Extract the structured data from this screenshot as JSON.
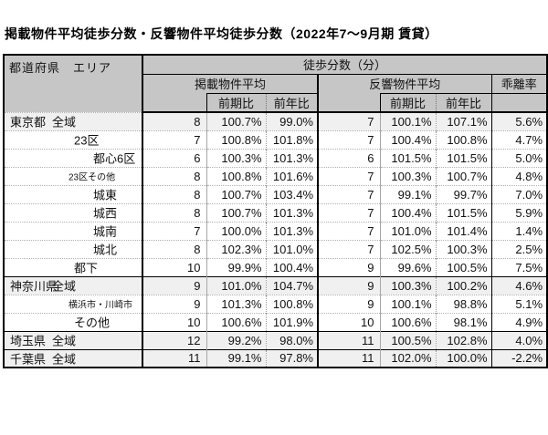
{
  "title": "掲載物件平均徒歩分数・反響物件平均徒歩分数（2022年7～9月期 賃貸）",
  "table": {
    "corner_header": "都道府県　エリア",
    "walk_header": "徒歩分数（分）",
    "headers": {
      "listed": "掲載物件平均",
      "response": "反響物件平均",
      "deviation": "乖離率",
      "prev_period": "前期比",
      "prev_year": "前年比"
    },
    "rows": [
      {
        "pref": "東京都",
        "area": "全域",
        "indent": 1,
        "tint": true,
        "group_start": false,
        "small": false,
        "listed": "8",
        "listed_prev_period": "100.7%",
        "listed_prev_year": "99.0%",
        "response": "7",
        "response_prev_period": "100.1%",
        "response_prev_year": "107.1%",
        "deviation": "5.6%"
      },
      {
        "pref": "",
        "area": "23区",
        "indent": 2,
        "tint": false,
        "group_start": false,
        "small": false,
        "listed": "7",
        "listed_prev_period": "100.8%",
        "listed_prev_year": "101.8%",
        "response": "7",
        "response_prev_period": "100.4%",
        "response_prev_year": "100.8%",
        "deviation": "4.7%"
      },
      {
        "pref": "",
        "area": "都心6区",
        "indent": 3,
        "tint": false,
        "group_start": false,
        "small": false,
        "listed": "6",
        "listed_prev_period": "100.3%",
        "listed_prev_year": "101.3%",
        "response": "6",
        "response_prev_period": "101.5%",
        "response_prev_year": "101.5%",
        "deviation": "5.0%"
      },
      {
        "pref": "",
        "area": "23区その他",
        "indent": 3,
        "tint": false,
        "group_start": false,
        "small": true,
        "listed": "8",
        "listed_prev_period": "100.8%",
        "listed_prev_year": "101.6%",
        "response": "7",
        "response_prev_period": "100.3%",
        "response_prev_year": "100.7%",
        "deviation": "4.8%"
      },
      {
        "pref": "",
        "area": "城東",
        "indent": 3,
        "tint": false,
        "group_start": false,
        "small": false,
        "listed": "8",
        "listed_prev_period": "100.7%",
        "listed_prev_year": "103.4%",
        "response": "7",
        "response_prev_period": "99.1%",
        "response_prev_year": "99.7%",
        "deviation": "7.0%"
      },
      {
        "pref": "",
        "area": "城西",
        "indent": 3,
        "tint": false,
        "group_start": false,
        "small": false,
        "listed": "8",
        "listed_prev_period": "100.7%",
        "listed_prev_year": "101.3%",
        "response": "7",
        "response_prev_period": "100.4%",
        "response_prev_year": "101.5%",
        "deviation": "5.9%"
      },
      {
        "pref": "",
        "area": "城南",
        "indent": 3,
        "tint": false,
        "group_start": false,
        "small": false,
        "listed": "7",
        "listed_prev_period": "100.0%",
        "listed_prev_year": "101.3%",
        "response": "7",
        "response_prev_period": "101.0%",
        "response_prev_year": "101.4%",
        "deviation": "1.4%"
      },
      {
        "pref": "",
        "area": "城北",
        "indent": 3,
        "tint": false,
        "group_start": false,
        "small": false,
        "listed": "8",
        "listed_prev_period": "102.3%",
        "listed_prev_year": "101.0%",
        "response": "7",
        "response_prev_period": "102.5%",
        "response_prev_year": "100.3%",
        "deviation": "2.5%"
      },
      {
        "pref": "",
        "area": "都下",
        "indent": 2,
        "tint": false,
        "group_start": false,
        "small": false,
        "listed": "10",
        "listed_prev_period": "99.9%",
        "listed_prev_year": "100.4%",
        "response": "9",
        "response_prev_period": "99.6%",
        "response_prev_year": "100.5%",
        "deviation": "7.5%"
      },
      {
        "pref": "神奈川県",
        "area": "全域",
        "indent": 1,
        "tint": true,
        "group_start": true,
        "small": false,
        "listed": "9",
        "listed_prev_period": "101.0%",
        "listed_prev_year": "104.7%",
        "response": "9",
        "response_prev_period": "100.3%",
        "response_prev_year": "100.2%",
        "deviation": "4.6%"
      },
      {
        "pref": "",
        "area": "横浜市・川崎市",
        "indent": 2,
        "tint": false,
        "group_start": false,
        "small": true,
        "listed": "9",
        "listed_prev_period": "101.3%",
        "listed_prev_year": "100.8%",
        "response": "9",
        "response_prev_period": "100.1%",
        "response_prev_year": "98.8%",
        "deviation": "5.1%"
      },
      {
        "pref": "",
        "area": "その他",
        "indent": 2,
        "tint": false,
        "group_start": false,
        "small": false,
        "listed": "10",
        "listed_prev_period": "100.6%",
        "listed_prev_year": "101.9%",
        "response": "10",
        "response_prev_period": "100.6%",
        "response_prev_year": "98.1%",
        "deviation": "4.9%"
      },
      {
        "pref": "埼玉県",
        "area": "全域",
        "indent": 1,
        "tint": true,
        "group_start": true,
        "small": false,
        "listed": "12",
        "listed_prev_period": "99.2%",
        "listed_prev_year": "98.0%",
        "response": "11",
        "response_prev_period": "100.5%",
        "response_prev_year": "102.8%",
        "deviation": "4.0%"
      },
      {
        "pref": "千葉県",
        "area": "全域",
        "indent": 1,
        "tint": true,
        "group_start": true,
        "small": false,
        "listed": "11",
        "listed_prev_period": "99.1%",
        "listed_prev_year": "97.8%",
        "response": "11",
        "response_prev_period": "102.0%",
        "response_prev_year": "100.0%",
        "deviation": "-2.2%"
      }
    ]
  },
  "colors": {
    "header_bg": "#c6c6c6",
    "highlight_row_bg": "#f0f0f0",
    "border_dark": "#000000",
    "border_light": "#a6a6a6"
  }
}
